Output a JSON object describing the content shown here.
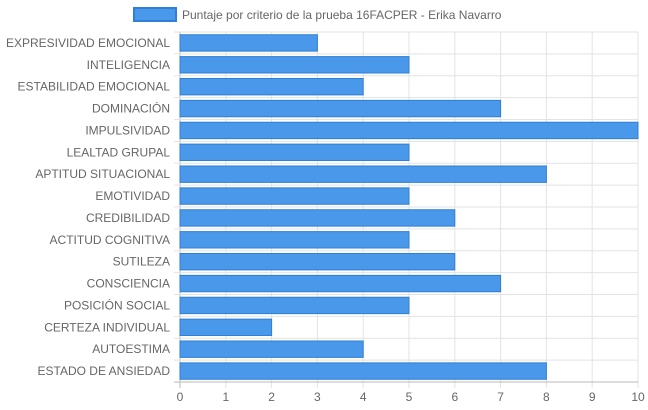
{
  "chart_data": {
    "type": "bar",
    "orientation": "horizontal",
    "categories": [
      "EXPRESIVIDAD EMOCIONAL",
      "INTELIGENCIA",
      "ESTABILIDAD EMOCIONAL",
      "DOMINACIÓN",
      "IMPULSIVIDAD",
      "LEALTAD GRUPAL",
      "APTITUD SITUACIONAL",
      "EMOTIVIDAD",
      "CREDIBILIDAD",
      "ACTITUD COGNITIVA",
      "SUTILEZA",
      "CONSCIENCIA",
      "POSICIÓN SOCIAL",
      "CERTEZA INDIVIDUAL",
      "AUTOESTIMA",
      "ESTADO DE ANSIEDAD"
    ],
    "series": [
      {
        "name": "Puntaje por criterio de la prueba 16FACPER - Erika Navarro",
        "values": [
          3,
          5,
          4,
          7,
          10,
          5,
          8,
          5,
          6,
          5,
          6,
          7,
          5,
          2,
          4,
          8
        ]
      }
    ],
    "xlim": [
      0,
      10
    ],
    "xticks": [
      "0",
      "1",
      "2",
      "3",
      "4",
      "5",
      "6",
      "7",
      "8",
      "9",
      "10"
    ],
    "grid": true,
    "legend_position": "top",
    "colors": {
      "bar_fill": "#4a98ea",
      "bar_border": "#2f7fd6",
      "grid": "#e3e3e3",
      "axis": "#b8b8b8",
      "text": "#666666"
    }
  }
}
